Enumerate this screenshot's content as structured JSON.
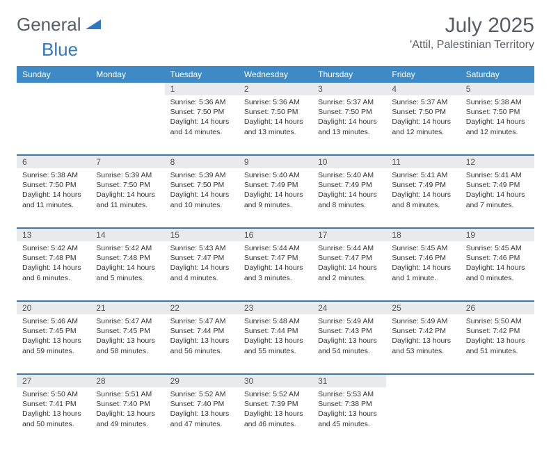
{
  "brand": {
    "part1": "General",
    "part2": "Blue"
  },
  "title": "July 2025",
  "location": "'Attil, Palestinian Territory",
  "days_of_week": [
    "Sunday",
    "Monday",
    "Tuesday",
    "Wednesday",
    "Thursday",
    "Friday",
    "Saturday"
  ],
  "colors": {
    "header_bg": "#3d8ac7",
    "row_divider": "#3d78a8",
    "daynum_bg": "#e9eaeb",
    "text_main": "#333333",
    "text_muted": "#555d66",
    "logo_blue": "#2f7abf",
    "background": "#ffffff"
  },
  "typography": {
    "title_fontsize": 30,
    "location_fontsize": 16,
    "header_fontsize": 12,
    "body_fontsize": 10.5
  },
  "layout": {
    "columns": 7,
    "rows": 5,
    "start_day_index": 2,
    "days_in_month": 31
  },
  "cells": {
    "1": {
      "sunrise": "5:36 AM",
      "sunset": "7:50 PM",
      "daylight": "14 hours and 14 minutes."
    },
    "2": {
      "sunrise": "5:36 AM",
      "sunset": "7:50 PM",
      "daylight": "14 hours and 13 minutes."
    },
    "3": {
      "sunrise": "5:37 AM",
      "sunset": "7:50 PM",
      "daylight": "14 hours and 13 minutes."
    },
    "4": {
      "sunrise": "5:37 AM",
      "sunset": "7:50 PM",
      "daylight": "14 hours and 12 minutes."
    },
    "5": {
      "sunrise": "5:38 AM",
      "sunset": "7:50 PM",
      "daylight": "14 hours and 12 minutes."
    },
    "6": {
      "sunrise": "5:38 AM",
      "sunset": "7:50 PM",
      "daylight": "14 hours and 11 minutes."
    },
    "7": {
      "sunrise": "5:39 AM",
      "sunset": "7:50 PM",
      "daylight": "14 hours and 11 minutes."
    },
    "8": {
      "sunrise": "5:39 AM",
      "sunset": "7:50 PM",
      "daylight": "14 hours and 10 minutes."
    },
    "9": {
      "sunrise": "5:40 AM",
      "sunset": "7:49 PM",
      "daylight": "14 hours and 9 minutes."
    },
    "10": {
      "sunrise": "5:40 AM",
      "sunset": "7:49 PM",
      "daylight": "14 hours and 8 minutes."
    },
    "11": {
      "sunrise": "5:41 AM",
      "sunset": "7:49 PM",
      "daylight": "14 hours and 8 minutes."
    },
    "12": {
      "sunrise": "5:41 AM",
      "sunset": "7:49 PM",
      "daylight": "14 hours and 7 minutes."
    },
    "13": {
      "sunrise": "5:42 AM",
      "sunset": "7:48 PM",
      "daylight": "14 hours and 6 minutes."
    },
    "14": {
      "sunrise": "5:42 AM",
      "sunset": "7:48 PM",
      "daylight": "14 hours and 5 minutes."
    },
    "15": {
      "sunrise": "5:43 AM",
      "sunset": "7:47 PM",
      "daylight": "14 hours and 4 minutes."
    },
    "16": {
      "sunrise": "5:44 AM",
      "sunset": "7:47 PM",
      "daylight": "14 hours and 3 minutes."
    },
    "17": {
      "sunrise": "5:44 AM",
      "sunset": "7:47 PM",
      "daylight": "14 hours and 2 minutes."
    },
    "18": {
      "sunrise": "5:45 AM",
      "sunset": "7:46 PM",
      "daylight": "14 hours and 1 minute."
    },
    "19": {
      "sunrise": "5:45 AM",
      "sunset": "7:46 PM",
      "daylight": "14 hours and 0 minutes."
    },
    "20": {
      "sunrise": "5:46 AM",
      "sunset": "7:45 PM",
      "daylight": "13 hours and 59 minutes."
    },
    "21": {
      "sunrise": "5:47 AM",
      "sunset": "7:45 PM",
      "daylight": "13 hours and 58 minutes."
    },
    "22": {
      "sunrise": "5:47 AM",
      "sunset": "7:44 PM",
      "daylight": "13 hours and 56 minutes."
    },
    "23": {
      "sunrise": "5:48 AM",
      "sunset": "7:44 PM",
      "daylight": "13 hours and 55 minutes."
    },
    "24": {
      "sunrise": "5:49 AM",
      "sunset": "7:43 PM",
      "daylight": "13 hours and 54 minutes."
    },
    "25": {
      "sunrise": "5:49 AM",
      "sunset": "7:42 PM",
      "daylight": "13 hours and 53 minutes."
    },
    "26": {
      "sunrise": "5:50 AM",
      "sunset": "7:42 PM",
      "daylight": "13 hours and 51 minutes."
    },
    "27": {
      "sunrise": "5:50 AM",
      "sunset": "7:41 PM",
      "daylight": "13 hours and 50 minutes."
    },
    "28": {
      "sunrise": "5:51 AM",
      "sunset": "7:40 PM",
      "daylight": "13 hours and 49 minutes."
    },
    "29": {
      "sunrise": "5:52 AM",
      "sunset": "7:40 PM",
      "daylight": "13 hours and 47 minutes."
    },
    "30": {
      "sunrise": "5:52 AM",
      "sunset": "7:39 PM",
      "daylight": "13 hours and 46 minutes."
    },
    "31": {
      "sunrise": "5:53 AM",
      "sunset": "7:38 PM",
      "daylight": "13 hours and 45 minutes."
    }
  },
  "labels": {
    "sunrise": "Sunrise:",
    "sunset": "Sunset:",
    "daylight": "Daylight:"
  }
}
